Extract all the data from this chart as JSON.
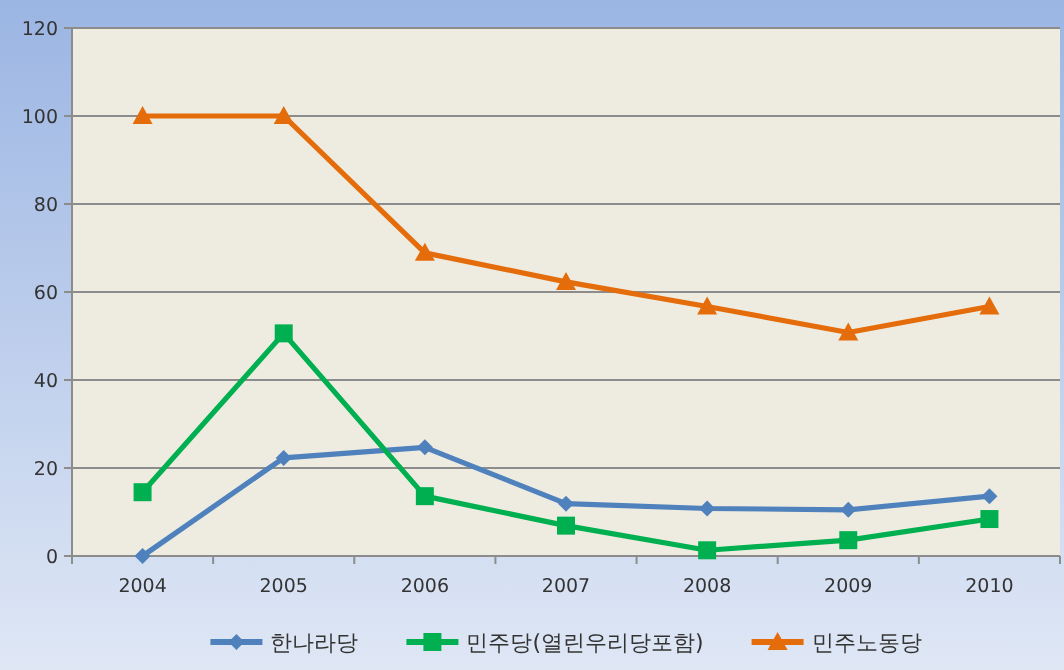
{
  "chart_data": {
    "type": "line",
    "categories": [
      "2004",
      "2005",
      "2006",
      "2007",
      "2008",
      "2009",
      "2010"
    ],
    "series": [
      {
        "name": "한나라당",
        "color": "#4f81bd",
        "marker": "diamond",
        "values": [
          0,
          22.3,
          24.7,
          11.9,
          10.8,
          10.5,
          13.6
        ]
      },
      {
        "name": "민주당(열린우리당포함)",
        "color": "#00b050",
        "marker": "square",
        "values": [
          14.5,
          50.6,
          13.6,
          6.9,
          1.3,
          3.6,
          8.4
        ]
      },
      {
        "name": "민주노동당",
        "color": "#e46c0a",
        "marker": "triangle",
        "values": [
          100,
          100,
          68.9,
          62.3,
          56.7,
          50.8,
          56.7
        ]
      }
    ],
    "ylim": [
      0,
      120
    ],
    "yticks": [
      0,
      20,
      40,
      60,
      80,
      100,
      120
    ],
    "grid": "y",
    "legend": "bottom"
  }
}
